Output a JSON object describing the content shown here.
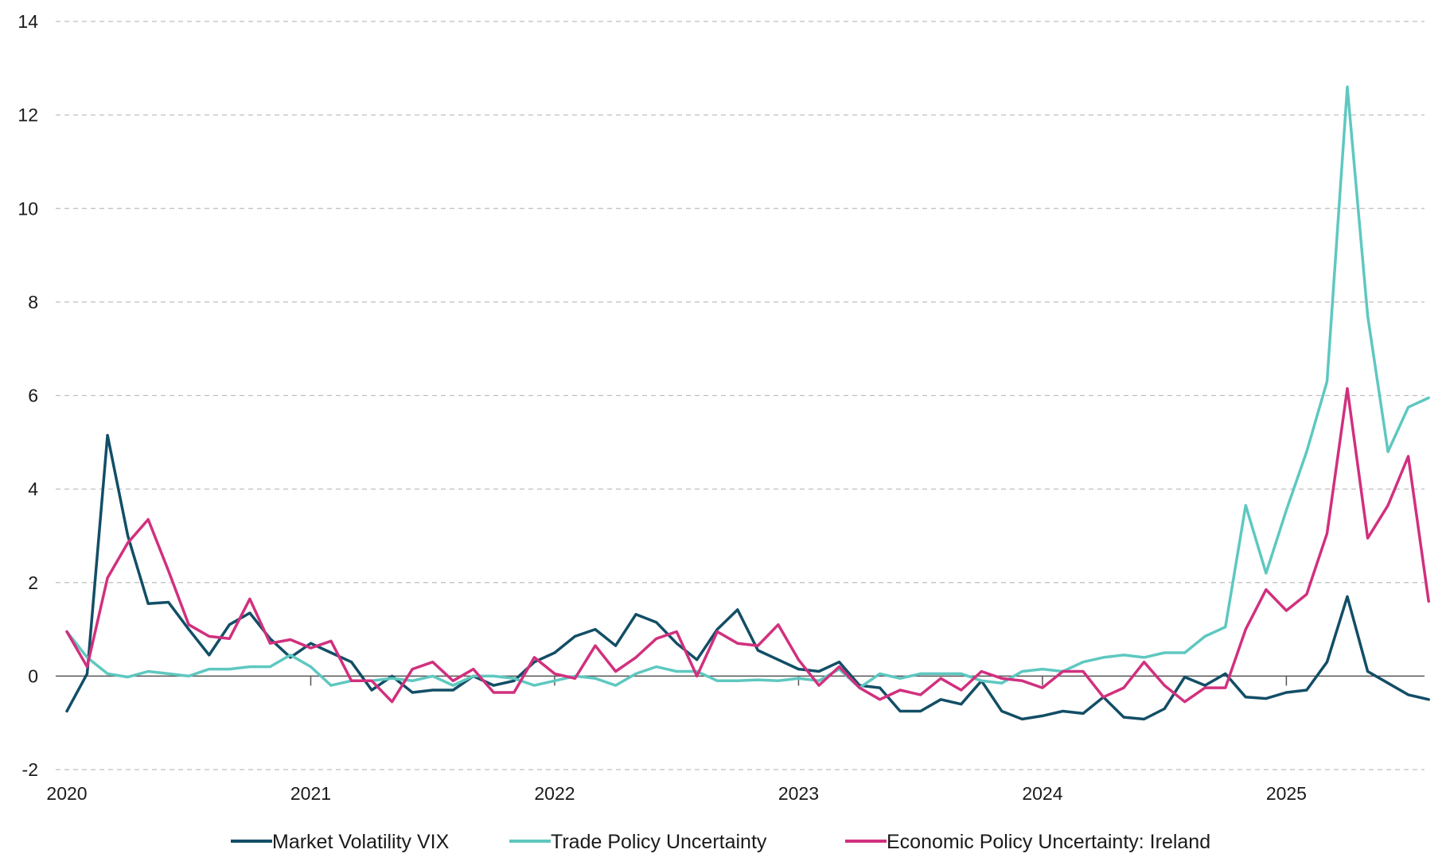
{
  "chart_data": {
    "type": "line",
    "title": "",
    "xlabel": "",
    "ylabel": "",
    "ylim": [
      -2,
      14
    ],
    "yticks": [
      "-2",
      "0",
      "2",
      "4",
      "6",
      "8",
      "10",
      "12",
      "14"
    ],
    "xtick_labels": [
      "2020",
      "2021",
      "2022",
      "2023",
      "2024",
      "2025"
    ],
    "x_start": "2020-01",
    "x_end": "2025-08",
    "grid": true,
    "legend_position": "bottom",
    "series": [
      {
        "name": "Market Volatility VIX",
        "color": "#124e66",
        "values": [
          -0.75,
          0.05,
          5.15,
          3.0,
          1.55,
          1.58,
          1.0,
          0.45,
          1.1,
          1.35,
          0.8,
          0.4,
          0.7,
          0.5,
          0.3,
          -0.3,
          0.0,
          -0.35,
          -0.3,
          -0.3,
          0.0,
          -0.2,
          -0.1,
          0.3,
          0.5,
          0.85,
          1.0,
          0.65,
          1.32,
          1.15,
          0.7,
          0.35,
          1.0,
          1.42,
          0.55,
          0.35,
          0.15,
          0.1,
          0.3,
          -0.2,
          -0.25,
          -0.75,
          -0.75,
          -0.5,
          -0.6,
          -0.1,
          -0.75,
          -0.92,
          -0.85,
          -0.75,
          -0.8,
          -0.45,
          -0.88,
          -0.92,
          -0.7,
          -0.02,
          -0.2,
          0.05,
          -0.45,
          -0.48,
          -0.35,
          -0.3,
          0.3,
          1.7,
          0.1,
          -0.15,
          -0.4,
          -0.5
        ]
      },
      {
        "name": "Trade Policy Uncertainty",
        "color": "#5ec8c0",
        "values": [
          0.95,
          0.4,
          0.05,
          -0.02,
          0.1,
          0.05,
          0.0,
          0.15,
          0.15,
          0.2,
          0.2,
          0.45,
          0.2,
          -0.2,
          -0.1,
          -0.1,
          -0.05,
          -0.1,
          0.0,
          -0.2,
          0.0,
          0.0,
          -0.05,
          -0.2,
          -0.1,
          0.0,
          -0.05,
          -0.2,
          0.05,
          0.2,
          0.1,
          0.1,
          -0.1,
          -0.1,
          -0.08,
          -0.1,
          -0.05,
          -0.1,
          0.15,
          -0.25,
          0.05,
          -0.05,
          0.05,
          0.05,
          0.05,
          -0.1,
          -0.15,
          0.1,
          0.15,
          0.1,
          0.3,
          0.4,
          0.45,
          0.4,
          0.5,
          0.5,
          0.85,
          1.05,
          3.65,
          2.2,
          3.55,
          4.8,
          6.3,
          12.6,
          7.7,
          4.8,
          5.75,
          5.95
        ]
      },
      {
        "name": "Economic Policy Uncertainty: Ireland",
        "color": "#d1307e",
        "values": [
          0.95,
          0.2,
          2.1,
          2.85,
          3.35,
          2.25,
          1.1,
          0.85,
          0.8,
          1.65,
          0.7,
          0.78,
          0.6,
          0.75,
          -0.1,
          -0.1,
          -0.55,
          0.15,
          0.3,
          -0.1,
          0.15,
          -0.35,
          -0.35,
          0.4,
          0.05,
          -0.05,
          0.65,
          0.1,
          0.4,
          0.8,
          0.95,
          0.0,
          0.95,
          0.7,
          0.65,
          1.1,
          0.35,
          -0.2,
          0.2,
          -0.25,
          -0.5,
          -0.3,
          -0.4,
          -0.05,
          -0.3,
          0.1,
          -0.05,
          -0.1,
          -0.25,
          0.1,
          0.1,
          -0.45,
          -0.25,
          0.3,
          -0.2,
          -0.55,
          -0.25,
          -0.25,
          1.0,
          1.85,
          1.4,
          1.75,
          3.05,
          6.15,
          2.95,
          3.65,
          4.7,
          1.6
        ]
      }
    ]
  }
}
